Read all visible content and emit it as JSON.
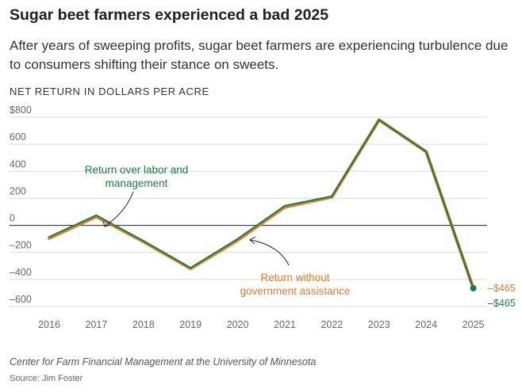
{
  "title": "Sugar beet farmers experienced a bad 2025",
  "subtitle": "After years of sweeping profits, sugar beet farmers are experiencing turbulence due to consumers shifting their stance on sweets.",
  "units_label": "NET RETURN IN DOLLARS PER ACRE",
  "source": "Center for Farm Financial Management at the University of Minnesota",
  "credit": "Source: Jim Foster",
  "chart_data": {
    "type": "line",
    "x": [
      "2016",
      "2017",
      "2018",
      "2019",
      "2020",
      "2021",
      "2022",
      "2023",
      "2024",
      "2025"
    ],
    "ylim": [
      -600,
      800
    ],
    "yticks": [
      800,
      600,
      400,
      200,
      0,
      -200,
      -400,
      -600
    ],
    "ytick_labels": [
      "$800",
      "600",
      "400",
      "200",
      "0",
      "–200",
      "–400",
      "–600"
    ],
    "grid": true,
    "series": [
      {
        "name": "Return without government assistance",
        "color": "#e07b2a",
        "values": [
          -95,
          65,
          -120,
          -320,
          -110,
          135,
          210,
          780,
          545,
          -465
        ],
        "end_label": "–$465"
      },
      {
        "name": "Return over labor and management",
        "color": "#1f7a45",
        "values": [
          -85,
          75,
          -115,
          -315,
          -100,
          145,
          215,
          780,
          545,
          -465
        ],
        "end_label": "–$465"
      }
    ],
    "annotations": [
      {
        "text": [
          "Return over labor and",
          "management"
        ],
        "series": 1,
        "color": "#1f7a45"
      },
      {
        "text": [
          "Return without",
          "government assistance"
        ],
        "series": 0,
        "color": "#e07b2a"
      }
    ]
  }
}
